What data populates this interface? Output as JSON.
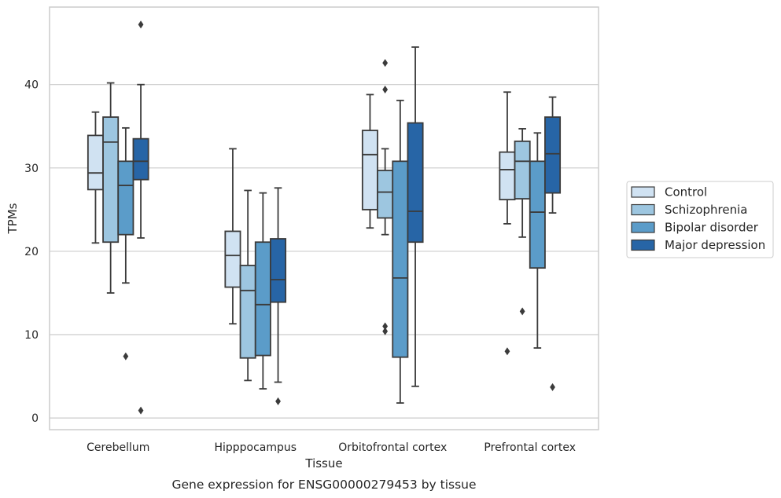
{
  "chart_data": {
    "type": "boxplot",
    "title": "",
    "caption": "Gene expression for ENSG00000279453 by tissue",
    "xlabel": "Tissue",
    "ylabel": "TPMs",
    "ylim": [
      -1.4,
      49.3
    ],
    "yticks": [
      0,
      10,
      20,
      30,
      40
    ],
    "grid": "horizontal",
    "legend_position": "right",
    "categories": [
      "Cerebellum",
      "Hipppocampus",
      "Orbitofrontal cortex",
      "Prefrontal cortex"
    ],
    "series": [
      {
        "name": "Control",
        "color": "#d0e2f2",
        "boxes": [
          {
            "whisker_low": 21.0,
            "q1": 27.4,
            "median": 29.4,
            "q3": 33.9,
            "whisker_high": 36.7,
            "outliers": []
          },
          {
            "whisker_low": 11.3,
            "q1": 15.7,
            "median": 19.5,
            "q3": 22.4,
            "whisker_high": 32.3,
            "outliers": []
          },
          {
            "whisker_low": 22.8,
            "q1": 25.0,
            "median": 31.6,
            "q3": 34.5,
            "whisker_high": 38.8,
            "outliers": []
          },
          {
            "whisker_low": 23.3,
            "q1": 26.2,
            "median": 29.8,
            "q3": 31.9,
            "whisker_high": 39.1,
            "outliers": [
              8.0
            ]
          }
        ]
      },
      {
        "name": "Schizophrenia",
        "color": "#9dc6e0",
        "boxes": [
          {
            "whisker_low": 15.0,
            "q1": 21.1,
            "median": 33.1,
            "q3": 36.1,
            "whisker_high": 40.2,
            "outliers": []
          },
          {
            "whisker_low": 4.5,
            "q1": 7.2,
            "median": 15.3,
            "q3": 18.3,
            "whisker_high": 27.3,
            "outliers": []
          },
          {
            "whisker_low": 22.0,
            "q1": 24.0,
            "median": 27.1,
            "q3": 29.7,
            "whisker_high": 32.3,
            "outliers": [
              42.6,
              39.4,
              11.0,
              10.4
            ]
          },
          {
            "whisker_low": 21.7,
            "q1": 26.3,
            "median": 30.8,
            "q3": 33.2,
            "whisker_high": 34.7,
            "outliers": [
              12.8
            ]
          }
        ]
      },
      {
        "name": "Bipolar disorder",
        "color": "#5b9cc9",
        "boxes": [
          {
            "whisker_low": 16.2,
            "q1": 22.0,
            "median": 27.9,
            "q3": 30.8,
            "whisker_high": 34.8,
            "outliers": [
              7.4
            ]
          },
          {
            "whisker_low": 3.5,
            "q1": 7.5,
            "median": 13.6,
            "q3": 21.1,
            "whisker_high": 27.0,
            "outliers": []
          },
          {
            "whisker_low": 1.8,
            "q1": 7.3,
            "median": 16.8,
            "q3": 30.8,
            "whisker_high": 38.1,
            "outliers": []
          },
          {
            "whisker_low": 8.4,
            "q1": 18.0,
            "median": 24.7,
            "q3": 30.8,
            "whisker_high": 34.2,
            "outliers": []
          }
        ]
      },
      {
        "name": "Major depression",
        "color": "#2765a6",
        "boxes": [
          {
            "whisker_low": 21.6,
            "q1": 28.6,
            "median": 30.8,
            "q3": 33.5,
            "whisker_high": 40.0,
            "outliers": [
              47.2,
              0.9
            ]
          },
          {
            "whisker_low": 4.3,
            "q1": 13.9,
            "median": 16.6,
            "q3": 21.5,
            "whisker_high": 27.6,
            "outliers": [
              2.0
            ]
          },
          {
            "whisker_low": 3.8,
            "q1": 21.1,
            "median": 24.8,
            "q3": 35.4,
            "whisker_high": 44.5,
            "outliers": []
          },
          {
            "whisker_low": 24.6,
            "q1": 27.0,
            "median": 31.7,
            "q3": 36.1,
            "whisker_high": 38.5,
            "outliers": [
              3.7
            ]
          }
        ]
      }
    ]
  }
}
